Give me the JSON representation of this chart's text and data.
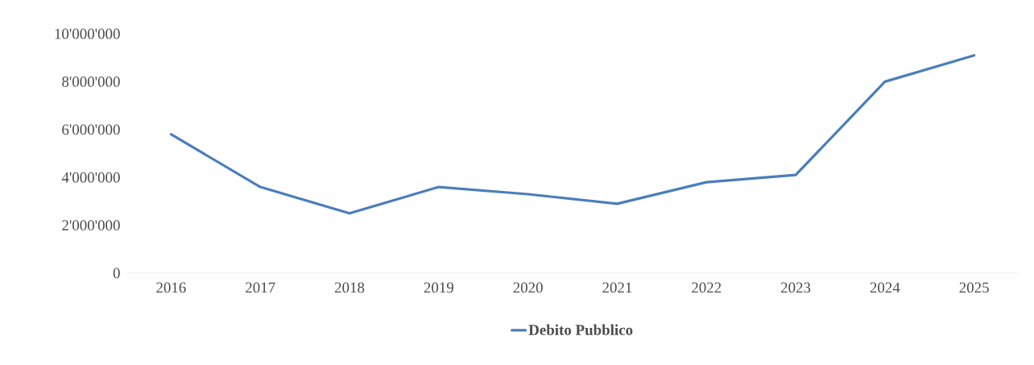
{
  "chart_data": {
    "type": "line",
    "categories": [
      "2016",
      "2017",
      "2018",
      "2019",
      "2020",
      "2021",
      "2022",
      "2023",
      "2024",
      "2025"
    ],
    "series": [
      {
        "name": "Debito Pubblico",
        "color": "#4a7ebb",
        "values": [
          5800000,
          3600000,
          2500000,
          3600000,
          3300000,
          2900000,
          3800000,
          4100000,
          8000000,
          9100000
        ]
      }
    ],
    "ylim": [
      0,
      10000000
    ],
    "yticks": [
      {
        "value": 0,
        "label": "0"
      },
      {
        "value": 2000000,
        "label": "2'000'000"
      },
      {
        "value": 4000000,
        "label": "4'000'000"
      },
      {
        "value": 6000000,
        "label": "6'000'000"
      },
      {
        "value": 8000000,
        "label": "8'000'000"
      },
      {
        "value": 10000000,
        "label": "10'000'000"
      }
    ],
    "grid": false,
    "legend": "bottom",
    "marker": "none",
    "line_style": "solid"
  }
}
